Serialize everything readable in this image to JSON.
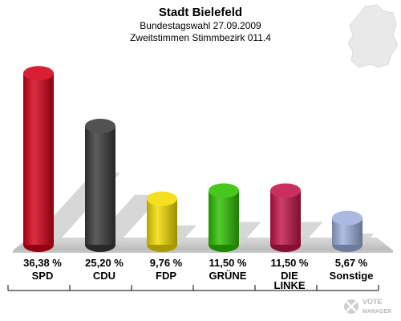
{
  "chart_data": {
    "type": "bar",
    "title": "Stadt Bielefeld",
    "subtitle_line1": "Bundestagswahl 27.09.2009",
    "subtitle_line2": "Zweitstimmen Stimmbezirk 011.4",
    "categories": [
      "SPD",
      "CDU",
      "FDP",
      "GRÜNE",
      "DIE LINKE",
      "Sonstige"
    ],
    "values": [
      36.38,
      25.2,
      9.76,
      11.5,
      11.5,
      5.67
    ],
    "value_labels": [
      "36,38 %",
      "25,20 %",
      "9,76 %",
      "11,50 %",
      "11,50 %",
      "5,67 %"
    ],
    "colors": [
      "#d40018",
      "#3a3a3a",
      "#f2dc00",
      "#2fc000",
      "#c2144a",
      "#9fb0dc"
    ],
    "ylim": [
      0,
      40
    ],
    "grid": false,
    "legend": "none"
  },
  "watermark": "VOTE MANAGER"
}
